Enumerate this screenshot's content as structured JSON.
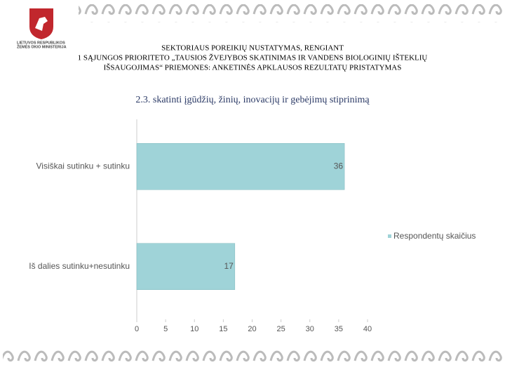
{
  "logo_text": [
    "LIETUVOS RESPUBLIKOS",
    "ŽEMĖS ŪKIO MINISTERIJA"
  ],
  "slide_title": [
    "SEKTORIAUS POREIKIŲ NUSTATYMAS, RENGIANT",
    "1 SĄJUNGOS PRIORITETO „TAUSIOS ŽVEJYBOS SKATINIMAS IR VANDENS BIOLOGINIŲ IŠTEKLIŲ",
    "IŠSAUGOJIMAS“ PRIEMONES: ANKETINĖS APKLAUSOS REZULTATŲ PRISTATYMAS"
  ],
  "chart_data": {
    "type": "bar",
    "orientation": "horizontal",
    "title": "2.3. skatinti įgūdžių, žinių, inovacijų ir gebėjimų stiprinimą",
    "categories": [
      "Visiškai sutinku + sutinku",
      "Iš dalies sutinku+nesutinku"
    ],
    "series": [
      {
        "name": "Respondentų skaičius",
        "color": "#9fd3d8",
        "values": [
          36,
          17
        ]
      }
    ],
    "xlim": [
      0,
      40
    ],
    "xticks": [
      0,
      5,
      10,
      15,
      20,
      25,
      30,
      35,
      40
    ],
    "legend": "right",
    "grid": false
  }
}
